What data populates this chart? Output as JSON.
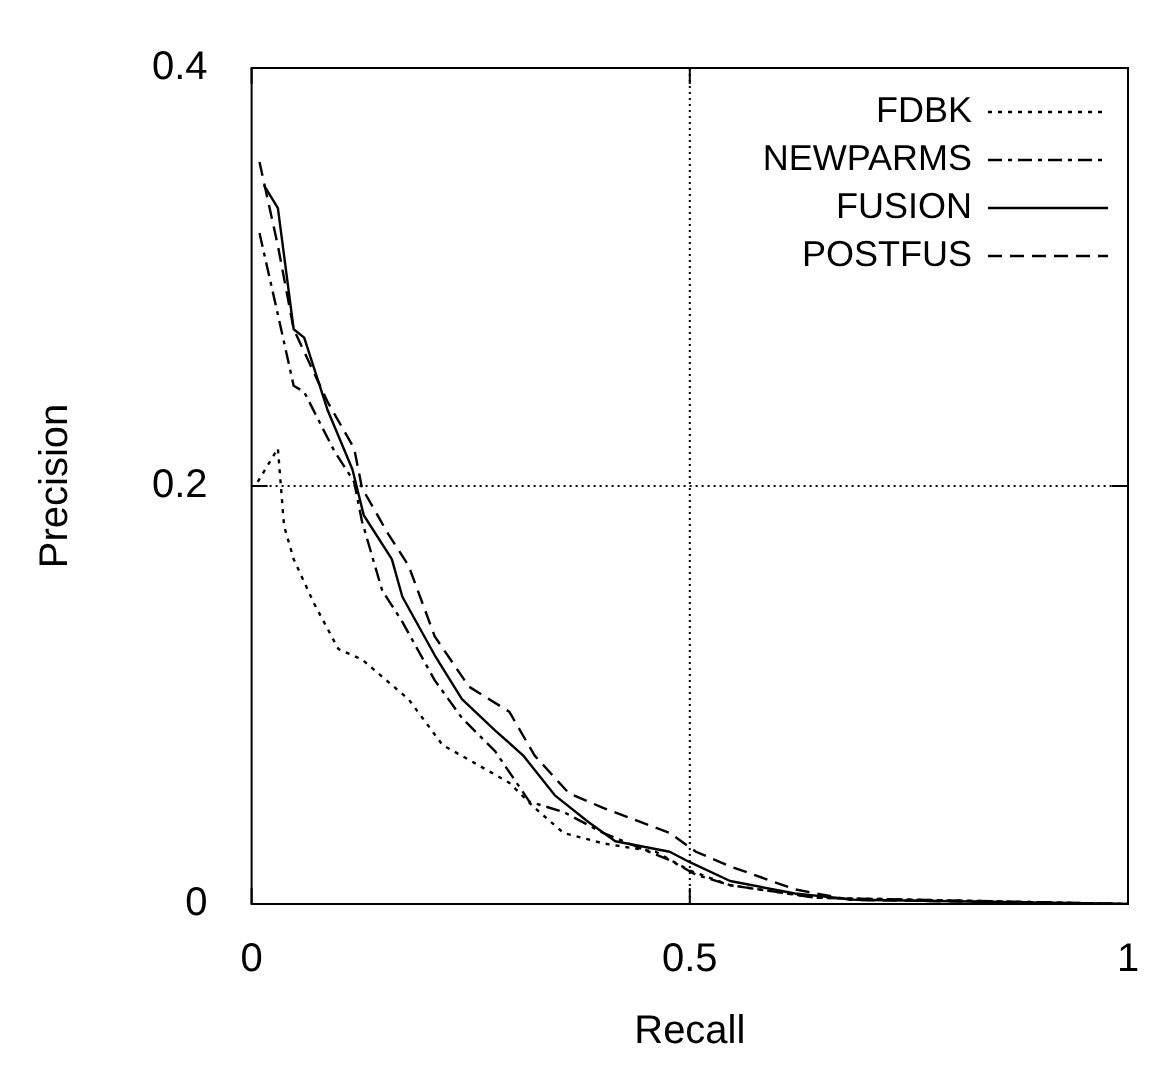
{
  "chart_data": {
    "type": "line",
    "xlabel": "Recall",
    "ylabel": "Precision",
    "xlim": [
      0,
      1
    ],
    "ylim": [
      0,
      0.4
    ],
    "xticks": [
      0,
      0.5,
      1
    ],
    "yticks": [
      0,
      0.2,
      0.4
    ],
    "grid": true,
    "legend": "top right",
    "marker": "none",
    "series": [
      {
        "name": "FDBK",
        "color": "#000000",
        "line_style": "dotted",
        "x": [
          0.007,
          0.03,
          0.037,
          0.048,
          0.071,
          0.099,
          0.126,
          0.179,
          0.195,
          0.218,
          0.248,
          0.294,
          0.323,
          0.356,
          0.401,
          0.461,
          0.5,
          0.546,
          0.644,
          1.0
        ],
        "values": [
          0.202,
          0.218,
          0.181,
          0.165,
          0.144,
          0.122,
          0.117,
          0.098,
          0.089,
          0.076,
          0.069,
          0.058,
          0.046,
          0.034,
          0.029,
          0.025,
          0.016,
          0.009,
          0.003,
          0.0
        ]
      },
      {
        "name": "NEWPARMS",
        "color": "#000000",
        "line_style": "dashdot",
        "x": [
          0.009,
          0.03,
          0.048,
          0.06,
          0.094,
          0.117,
          0.126,
          0.149,
          0.172,
          0.209,
          0.24,
          0.278,
          0.317,
          0.356,
          0.401,
          0.477,
          0.507,
          0.546,
          0.644,
          1.0
        ],
        "values": [
          0.321,
          0.282,
          0.248,
          0.245,
          0.217,
          0.202,
          0.183,
          0.15,
          0.135,
          0.107,
          0.089,
          0.073,
          0.049,
          0.044,
          0.034,
          0.021,
          0.014,
          0.009,
          0.003,
          0.0
        ]
      },
      {
        "name": "FUSION",
        "color": "#000000",
        "line_style": "solid",
        "x": [
          0.014,
          0.03,
          0.048,
          0.06,
          0.087,
          0.115,
          0.128,
          0.16,
          0.172,
          0.209,
          0.24,
          0.278,
          0.31,
          0.346,
          0.385,
          0.415,
          0.477,
          0.5,
          0.546,
          0.62,
          0.69,
          1.0
        ],
        "values": [
          0.344,
          0.333,
          0.275,
          0.271,
          0.236,
          0.208,
          0.186,
          0.165,
          0.147,
          0.119,
          0.098,
          0.083,
          0.071,
          0.052,
          0.039,
          0.03,
          0.025,
          0.02,
          0.011,
          0.005,
          0.002,
          0.0
        ]
      },
      {
        "name": "POSTFUS",
        "color": "#000000",
        "line_style": "dashed",
        "x": [
          0.009,
          0.03,
          0.048,
          0.087,
          0.117,
          0.126,
          0.156,
          0.179,
          0.209,
          0.248,
          0.294,
          0.323,
          0.362,
          0.401,
          0.477,
          0.507,
          0.546,
          0.62,
          0.683,
          1.0
        ],
        "values": [
          0.355,
          0.315,
          0.275,
          0.24,
          0.218,
          0.199,
          0.177,
          0.162,
          0.128,
          0.104,
          0.092,
          0.071,
          0.053,
          0.046,
          0.034,
          0.025,
          0.018,
          0.007,
          0.002,
          0.0
        ]
      }
    ]
  }
}
